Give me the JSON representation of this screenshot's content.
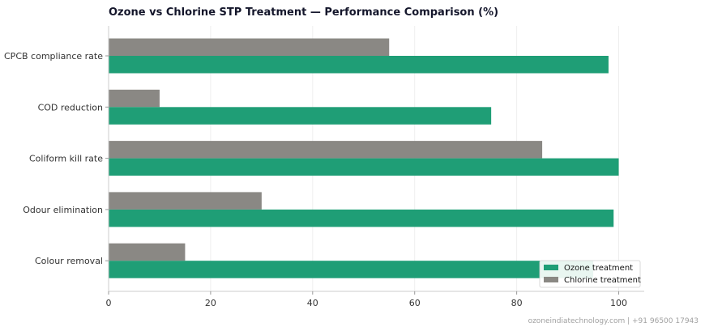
{
  "chart_data": {
    "type": "bar",
    "orientation": "horizontal",
    "title": "Ozone vs Chlorine STP Treatment — Performance Comparison (%)",
    "categories": [
      "CPCB compliance rate",
      "COD reduction",
      "Coliform kill rate",
      "Odour elimination",
      "Colour removal"
    ],
    "series": [
      {
        "name": "Ozone treatment",
        "color": "#1f9e76",
        "values": [
          98,
          75,
          100,
          99,
          95
        ]
      },
      {
        "name": "Chlorine treatment",
        "color": "#8a8884",
        "values": [
          55,
          10,
          85,
          30,
          15
        ]
      }
    ],
    "xlim": [
      0,
      105
    ],
    "xticks": [
      0,
      20,
      40,
      60,
      80,
      100
    ],
    "xlabel": "",
    "ylabel": "",
    "grid": "vertical",
    "legend_position": "bottom-right"
  },
  "footer": "ozoneindiatechnology.com | +91 96500 17943"
}
